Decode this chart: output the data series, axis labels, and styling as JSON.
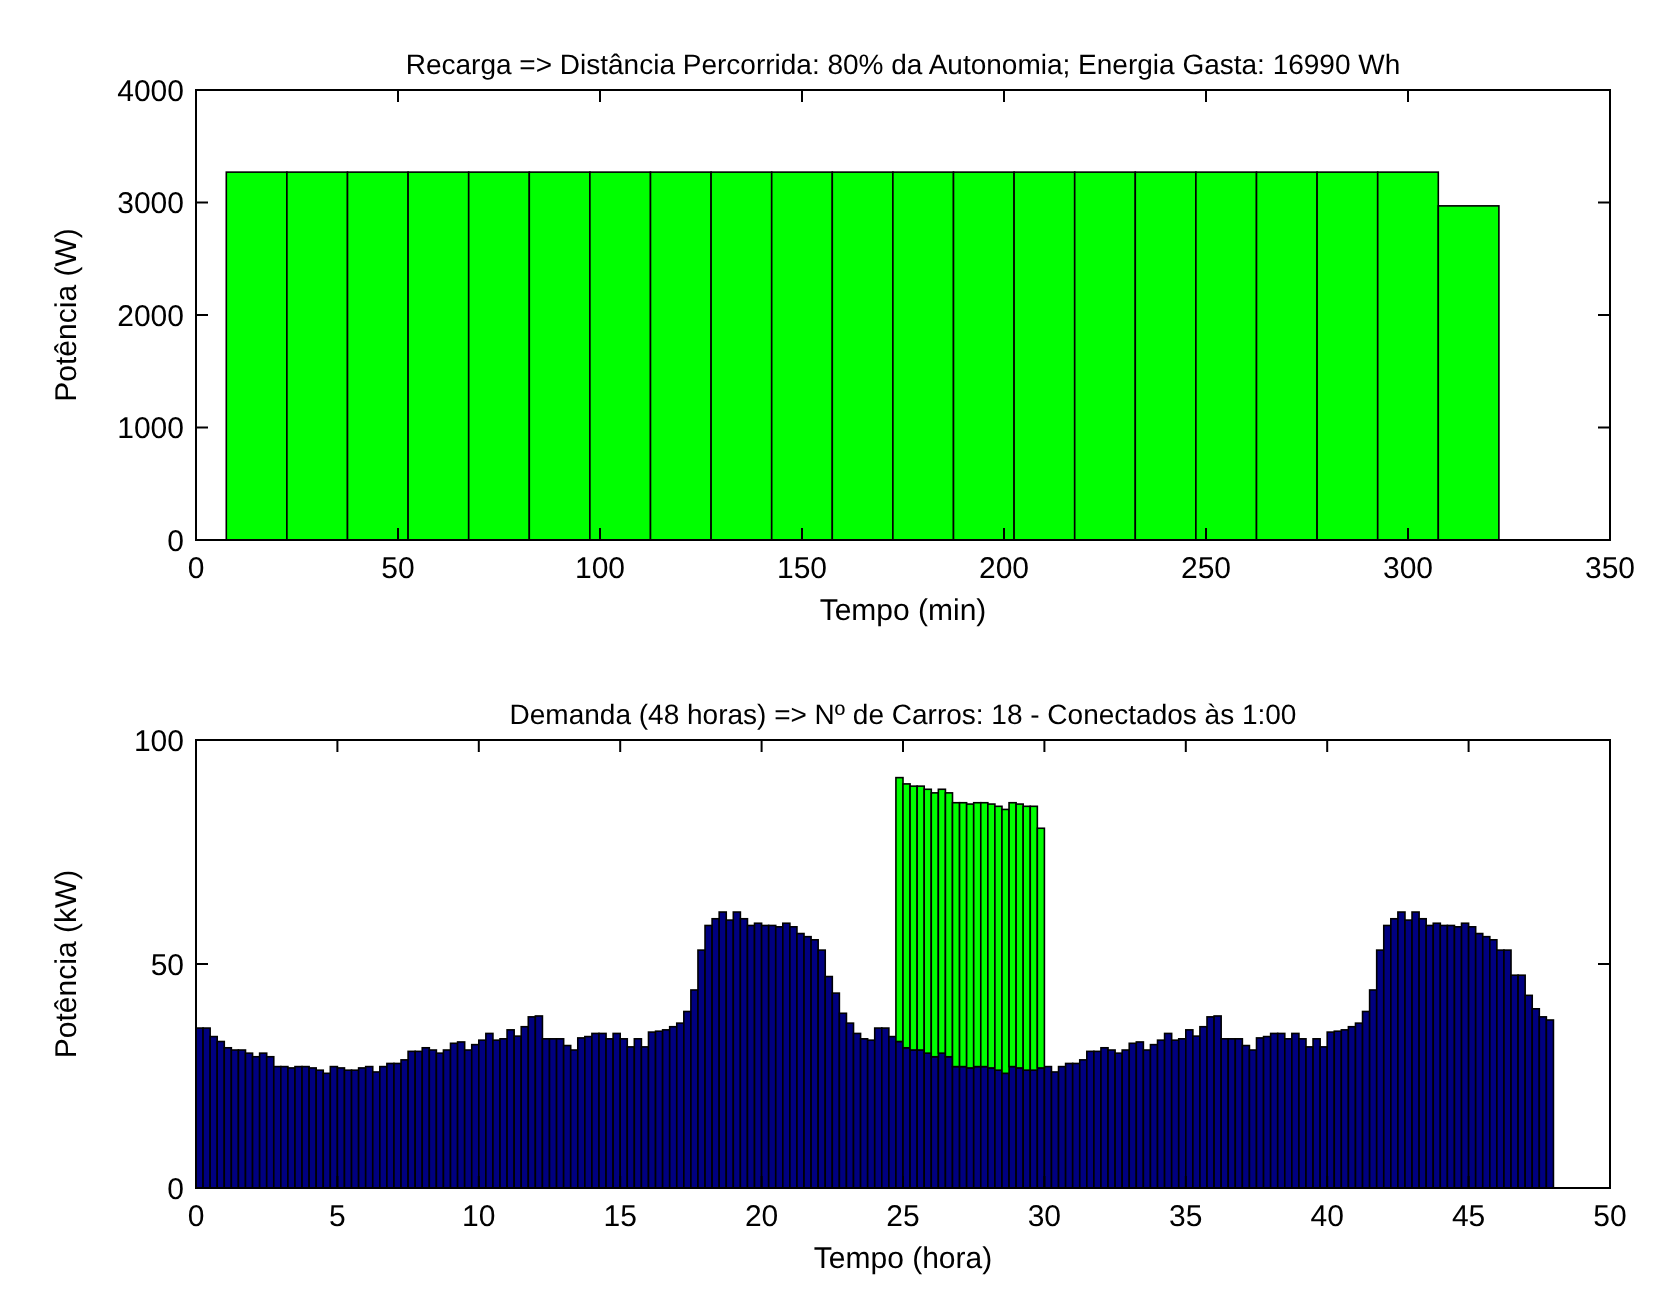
{
  "chart_data": [
    {
      "type": "bar",
      "title": "Recarga => Distância Percorrida: 80% da Autonomia; Energia Gasta: 16990 Wh",
      "xlabel": "Tempo (min)",
      "ylabel": "Potência (W)",
      "x": [
        15,
        30,
        45,
        60,
        75,
        90,
        105,
        120,
        135,
        150,
        165,
        180,
        195,
        210,
        225,
        240,
        255,
        270,
        285,
        300,
        315
      ],
      "series": [
        {
          "color": "#00ff00",
          "values": [
            3270,
            3270,
            3270,
            3270,
            3270,
            3270,
            3270,
            3270,
            3270,
            3270,
            3270,
            3270,
            3270,
            3270,
            3270,
            3270,
            3270,
            3270,
            3270,
            3270,
            2970
          ]
        }
      ],
      "xlim": [
        0,
        350
      ],
      "xticks": [
        0,
        50,
        100,
        150,
        200,
        250,
        300,
        350
      ],
      "ylim": [
        0,
        4000
      ],
      "yticks": [
        0,
        1000,
        2000,
        3000,
        4000
      ]
    },
    {
      "type": "bar",
      "title": "Demanda (48 horas) => Nº de Carros: 18 - Conectados às 1:00",
      "xlabel": "Tempo (hora)",
      "ylabel": "Potência (kW)",
      "stacked": true,
      "x": [
        0.125,
        0.375,
        0.625,
        0.875,
        1.125,
        1.375,
        1.625,
        1.875,
        2.125,
        2.375,
        2.625,
        2.875,
        3.125,
        3.375,
        3.625,
        3.875,
        4.125,
        4.375,
        4.625,
        4.875,
        5.125,
        5.375,
        5.625,
        5.875,
        6.125,
        6.375,
        6.625,
        6.875,
        7.125,
        7.375,
        7.625,
        7.875,
        8.125,
        8.375,
        8.625,
        8.875,
        9.125,
        9.375,
        9.625,
        9.875,
        10.125,
        10.375,
        10.625,
        10.875,
        11.125,
        11.375,
        11.625,
        11.875,
        12.125,
        12.375,
        12.625,
        12.875,
        13.125,
        13.375,
        13.625,
        13.875,
        14.125,
        14.375,
        14.625,
        14.875,
        15.125,
        15.375,
        15.625,
        15.875,
        16.125,
        16.375,
        16.625,
        16.875,
        17.125,
        17.375,
        17.625,
        17.875,
        18.125,
        18.375,
        18.625,
        18.875,
        19.125,
        19.375,
        19.625,
        19.875,
        20.125,
        20.375,
        20.625,
        20.875,
        21.125,
        21.375,
        21.625,
        21.875,
        22.125,
        22.375,
        22.625,
        22.875,
        23.125,
        23.375,
        23.625,
        23.875,
        24.125,
        24.375,
        24.625,
        24.875,
        25.125,
        25.375,
        25.625,
        25.875,
        26.125,
        26.375,
        26.625,
        26.875,
        27.125,
        27.375,
        27.625,
        27.875,
        28.125,
        28.375,
        28.625,
        28.875,
        29.125,
        29.375,
        29.625,
        29.875,
        30.125,
        30.375,
        30.625,
        30.875,
        31.125,
        31.375,
        31.625,
        31.875,
        32.125,
        32.375,
        32.625,
        32.875,
        33.125,
        33.375,
        33.625,
        33.875,
        34.125,
        34.375,
        34.625,
        34.875,
        35.125,
        35.375,
        35.625,
        35.875,
        36.125,
        36.375,
        36.625,
        36.875,
        37.125,
        37.375,
        37.625,
        37.875,
        38.125,
        38.375,
        38.625,
        38.875,
        39.125,
        39.375,
        39.625,
        39.875,
        40.125,
        40.375,
        40.625,
        40.875,
        41.125,
        41.375,
        41.625,
        41.875,
        42.125,
        42.375,
        42.625,
        42.875,
        43.125,
        43.375,
        43.625,
        43.875,
        44.125,
        44.375,
        44.625,
        44.875,
        45.125,
        45.375,
        45.625,
        45.875,
        46.125,
        46.375,
        46.625,
        46.875,
        47.125,
        47.375,
        47.625,
        47.875
      ],
      "series": [
        {
          "color": "#000080",
          "values": [
            35.7,
            35.7,
            33.8,
            32.7,
            31.3,
            30.8,
            30.8,
            30.1,
            29.3,
            30.1,
            29.3,
            27.1,
            27.1,
            26.8,
            27.1,
            27.1,
            26.8,
            26.3,
            25.6,
            27.1,
            26.8,
            26.3,
            26.3,
            26.8,
            27.1,
            25.9,
            27.1,
            27.8,
            27.8,
            28.6,
            30.5,
            30.5,
            31.3,
            30.8,
            30.1,
            30.8,
            32.3,
            32.6,
            30.8,
            32,
            33,
            34.5,
            33,
            33.3,
            35.3,
            33.9,
            36,
            38.2,
            38.4,
            33.3,
            33.3,
            33.3,
            31.8,
            30.8,
            33.5,
            33.8,
            34.5,
            34.5,
            33.3,
            34.5,
            33.3,
            31.5,
            33.3,
            31.5,
            34.8,
            35,
            35.3,
            36,
            36.8,
            39.4,
            44.2,
            53.1,
            58.6,
            60.1,
            61.6,
            59.8,
            61.6,
            60.1,
            58.6,
            59.1,
            58.6,
            58.6,
            58.3,
            59.1,
            58.3,
            56.8,
            56.1,
            55.4,
            53.1,
            47.2,
            43.5,
            39,
            36.8,
            34.5,
            33.3,
            33,
            35.7,
            35.7,
            33.8,
            32.7,
            31.3,
            30.8,
            30.8,
            30.1,
            29.3,
            30.1,
            29.3,
            27.1,
            27.1,
            26.8,
            27.1,
            27.1,
            26.8,
            26.3,
            25.6,
            27.1,
            26.8,
            26.3,
            26.3,
            26.8,
            27.1,
            25.9,
            27.1,
            27.8,
            27.8,
            28.6,
            30.5,
            30.5,
            31.3,
            30.8,
            30.1,
            30.8,
            32.3,
            32.6,
            30.8,
            32,
            33,
            34.5,
            33,
            33.3,
            35.3,
            33.9,
            36,
            38.2,
            38.4,
            33.3,
            33.3,
            33.3,
            31.8,
            30.8,
            33.5,
            33.8,
            34.5,
            34.5,
            33.3,
            34.5,
            33.3,
            31.5,
            33.3,
            31.5,
            34.8,
            35,
            35.3,
            36,
            36.8,
            39.4,
            44.2,
            53.1,
            58.6,
            60.1,
            61.6,
            59.8,
            61.6,
            60.1,
            58.6,
            59.1,
            58.6,
            58.6,
            58.3,
            59.1,
            58.3,
            56.8,
            56.1,
            55.4,
            53.1,
            53.1,
            47.5,
            47.5,
            43,
            40,
            38.2,
            37.5
          ]
        },
        {
          "color": "#00ff00",
          "values": [
            null,
            null,
            null,
            null,
            null,
            null,
            null,
            null,
            null,
            null,
            null,
            null,
            null,
            null,
            null,
            null,
            null,
            null,
            null,
            null,
            null,
            null,
            null,
            null,
            null,
            null,
            null,
            null,
            null,
            null,
            null,
            null,
            null,
            null,
            null,
            null,
            null,
            null,
            null,
            null,
            null,
            null,
            null,
            null,
            null,
            null,
            null,
            null,
            null,
            null,
            null,
            null,
            null,
            null,
            null,
            null,
            null,
            null,
            null,
            null,
            null,
            null,
            null,
            null,
            null,
            null,
            null,
            null,
            null,
            null,
            null,
            null,
            null,
            null,
            null,
            null,
            null,
            null,
            null,
            null,
            null,
            null,
            null,
            null,
            null,
            null,
            null,
            null,
            null,
            null,
            null,
            null,
            null,
            null,
            null,
            null,
            null,
            null,
            null,
            58.9,
            58.9,
            58.9,
            58.9,
            58.9,
            58.9,
            58.9,
            58.9,
            58.9,
            58.9,
            58.9,
            58.9,
            58.9,
            58.9,
            58.9,
            58.9,
            58.9,
            58.9,
            58.9,
            58.9,
            53.5,
            null,
            null,
            null,
            null,
            null,
            null,
            null,
            null,
            null,
            null,
            null,
            null,
            null,
            null,
            null,
            null,
            null,
            null,
            null,
            null,
            null,
            null,
            null,
            null,
            null,
            null,
            null,
            null,
            null,
            null,
            null,
            null,
            null,
            null,
            null,
            null,
            null,
            null,
            null,
            null,
            null,
            null,
            null,
            null,
            null,
            null,
            null,
            null,
            null,
            null,
            null,
            null,
            null,
            null,
            null,
            null,
            null,
            null,
            null,
            null,
            null,
            null,
            null,
            null,
            null,
            null,
            null,
            null,
            null,
            null,
            null,
            null
          ]
        }
      ],
      "xlim": [
        0,
        50
      ],
      "xticks": [
        0,
        5,
        10,
        15,
        20,
        25,
        30,
        35,
        40,
        45,
        50
      ],
      "ylim": [
        0,
        100
      ],
      "yticks": [
        0,
        50,
        100
      ]
    }
  ]
}
